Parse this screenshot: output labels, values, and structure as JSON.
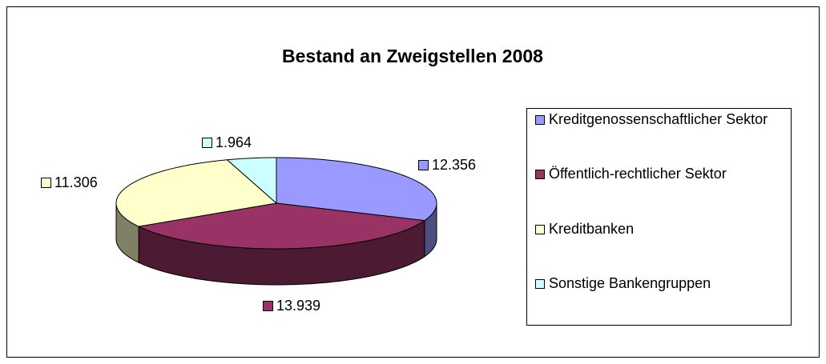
{
  "chart_data": {
    "type": "pie3d",
    "title": "Bestand an Zweigstellen 2008",
    "categories": [
      "Kreditgenossenschaftlicher Sektor",
      "Öffentlich-rechtlicher Sektor",
      "Kreditbanken",
      "Sonstige Bankengruppen"
    ],
    "values": [
      12356,
      13939,
      11306,
      1964
    ],
    "value_labels": [
      "12.356",
      "13.939",
      "11.306",
      "1.964"
    ],
    "colors": [
      "#9999ff",
      "#993366",
      "#ffffcc",
      "#ccffff"
    ],
    "legend": "right"
  }
}
